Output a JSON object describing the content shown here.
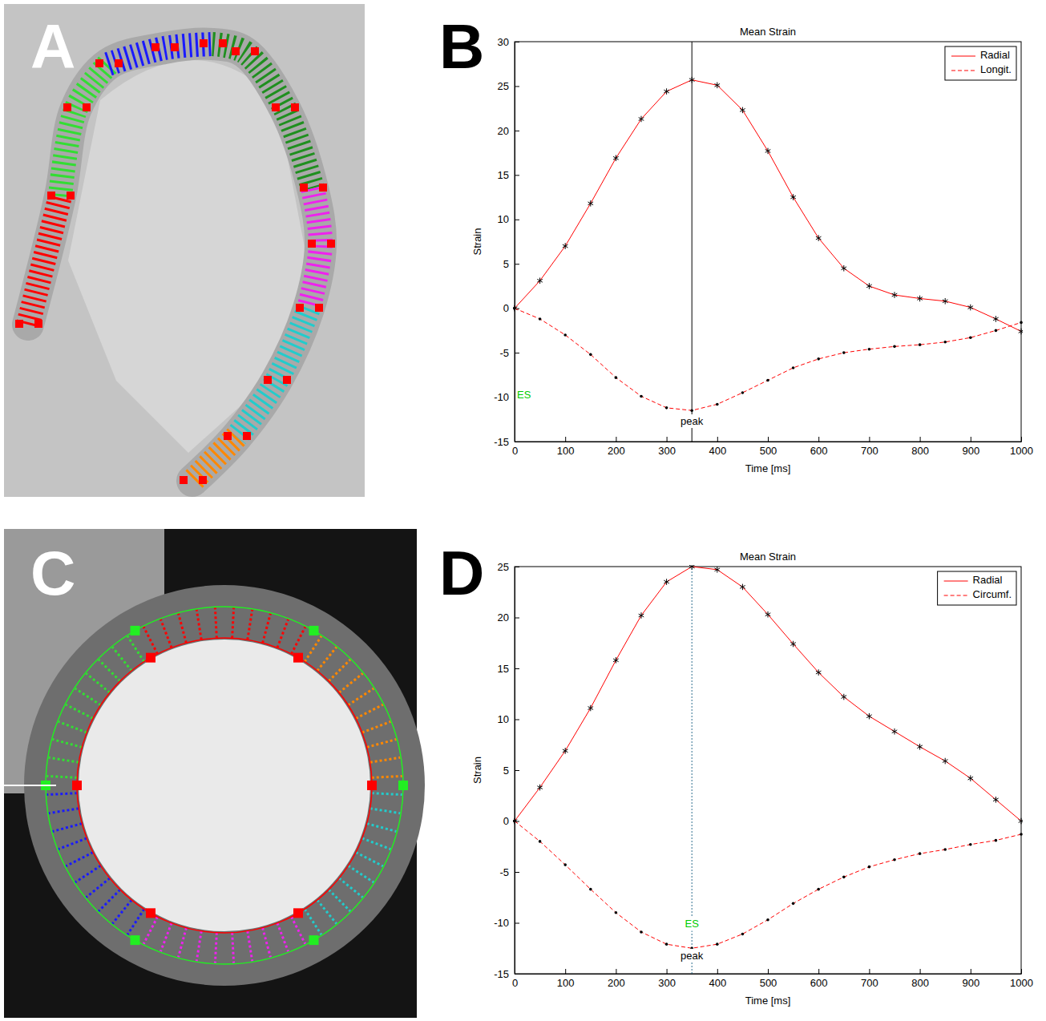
{
  "panels": [
    "A",
    "B",
    "C",
    "D"
  ],
  "chart_data": [
    {
      "type": "line",
      "title": "Mean Strain",
      "x_label": "Time [ms]",
      "y_label": "Strain",
      "x": [
        0,
        50,
        100,
        150,
        200,
        250,
        300,
        350,
        400,
        450,
        500,
        550,
        600,
        650,
        700,
        750,
        800,
        850,
        900,
        950,
        1000
      ],
      "series": [
        {
          "name": "Radial",
          "color": "#ff0000",
          "line_style": "solid",
          "marker": "asterisk",
          "values": [
            0,
            3.1,
            7.0,
            11.8,
            16.9,
            21.3,
            24.4,
            25.7,
            25.1,
            22.3,
            17.7,
            12.5,
            7.9,
            4.5,
            2.5,
            1.5,
            1.1,
            0.8,
            0.1,
            -1.2,
            -2.6
          ]
        },
        {
          "name": "Longit.",
          "color": "#ff0000",
          "line_style": "dashed",
          "marker": "dot",
          "values": [
            0,
            -1.2,
            -3.0,
            -5.2,
            -7.8,
            -9.9,
            -11.2,
            -11.5,
            -10.8,
            -9.5,
            -8.1,
            -6.7,
            -5.7,
            -5.0,
            -4.6,
            -4.3,
            -4.1,
            -3.8,
            -3.3,
            -2.5,
            -1.6
          ]
        }
      ],
      "xlim": [
        0,
        1000
      ],
      "xticks": [
        0,
        100,
        200,
        300,
        400,
        500,
        600,
        700,
        800,
        900,
        1000
      ],
      "ylim": [
        -15,
        30
      ],
      "yticks": [
        -15,
        -10,
        -5,
        0,
        5,
        10,
        15,
        20,
        25,
        30
      ],
      "grid": false,
      "legend": "northeast",
      "vline": {
        "x": 350,
        "color": "#000000"
      },
      "annotations": [
        {
          "text": "ES",
          "x": 0,
          "y": -9.8,
          "color": "#00cc00"
        },
        {
          "text": "peak",
          "x": 350,
          "y": -12.8,
          "color": "#000000"
        }
      ]
    },
    {
      "type": "line",
      "title": "Mean Strain",
      "x_label": "Time [ms]",
      "y_label": "Strain",
      "x": [
        0,
        50,
        100,
        150,
        200,
        250,
        300,
        350,
        400,
        450,
        500,
        550,
        600,
        650,
        700,
        750,
        800,
        850,
        900,
        950,
        1000
      ],
      "series": [
        {
          "name": "Radial",
          "color": "#ff0000",
          "line_style": "solid",
          "marker": "asterisk",
          "values": [
            0,
            3.3,
            6.9,
            11.1,
            15.8,
            20.2,
            23.5,
            25.0,
            24.7,
            23.0,
            20.3,
            17.4,
            14.6,
            12.2,
            10.3,
            8.8,
            7.3,
            5.9,
            4.2,
            2.1,
            0.0
          ]
        },
        {
          "name": "Circumf.",
          "color": "#ff0000",
          "line_style": "dashed",
          "marker": "dot",
          "values": [
            0,
            -2.0,
            -4.3,
            -6.7,
            -9.0,
            -10.9,
            -12.1,
            -12.5,
            -12.1,
            -11.1,
            -9.7,
            -8.1,
            -6.7,
            -5.5,
            -4.5,
            -3.8,
            -3.2,
            -2.8,
            -2.3,
            -1.9,
            -1.3
          ]
        }
      ],
      "xlim": [
        0,
        1000
      ],
      "xticks": [
        0,
        100,
        200,
        300,
        400,
        500,
        600,
        700,
        800,
        900,
        1000
      ],
      "ylim": [
        -15,
        25
      ],
      "yticks": [
        -15,
        -10,
        -5,
        0,
        5,
        10,
        15,
        20,
        25
      ],
      "grid": false,
      "legend": "northeast",
      "vline": {
        "x": 350,
        "color": "#2f6f8f"
      },
      "annotations": [
        {
          "text": "ES",
          "x": 350,
          "y": -10.2,
          "color": "#00cc00"
        },
        {
          "text": "peak",
          "x": 350,
          "y": -13.3,
          "color": "#000000"
        }
      ]
    }
  ]
}
